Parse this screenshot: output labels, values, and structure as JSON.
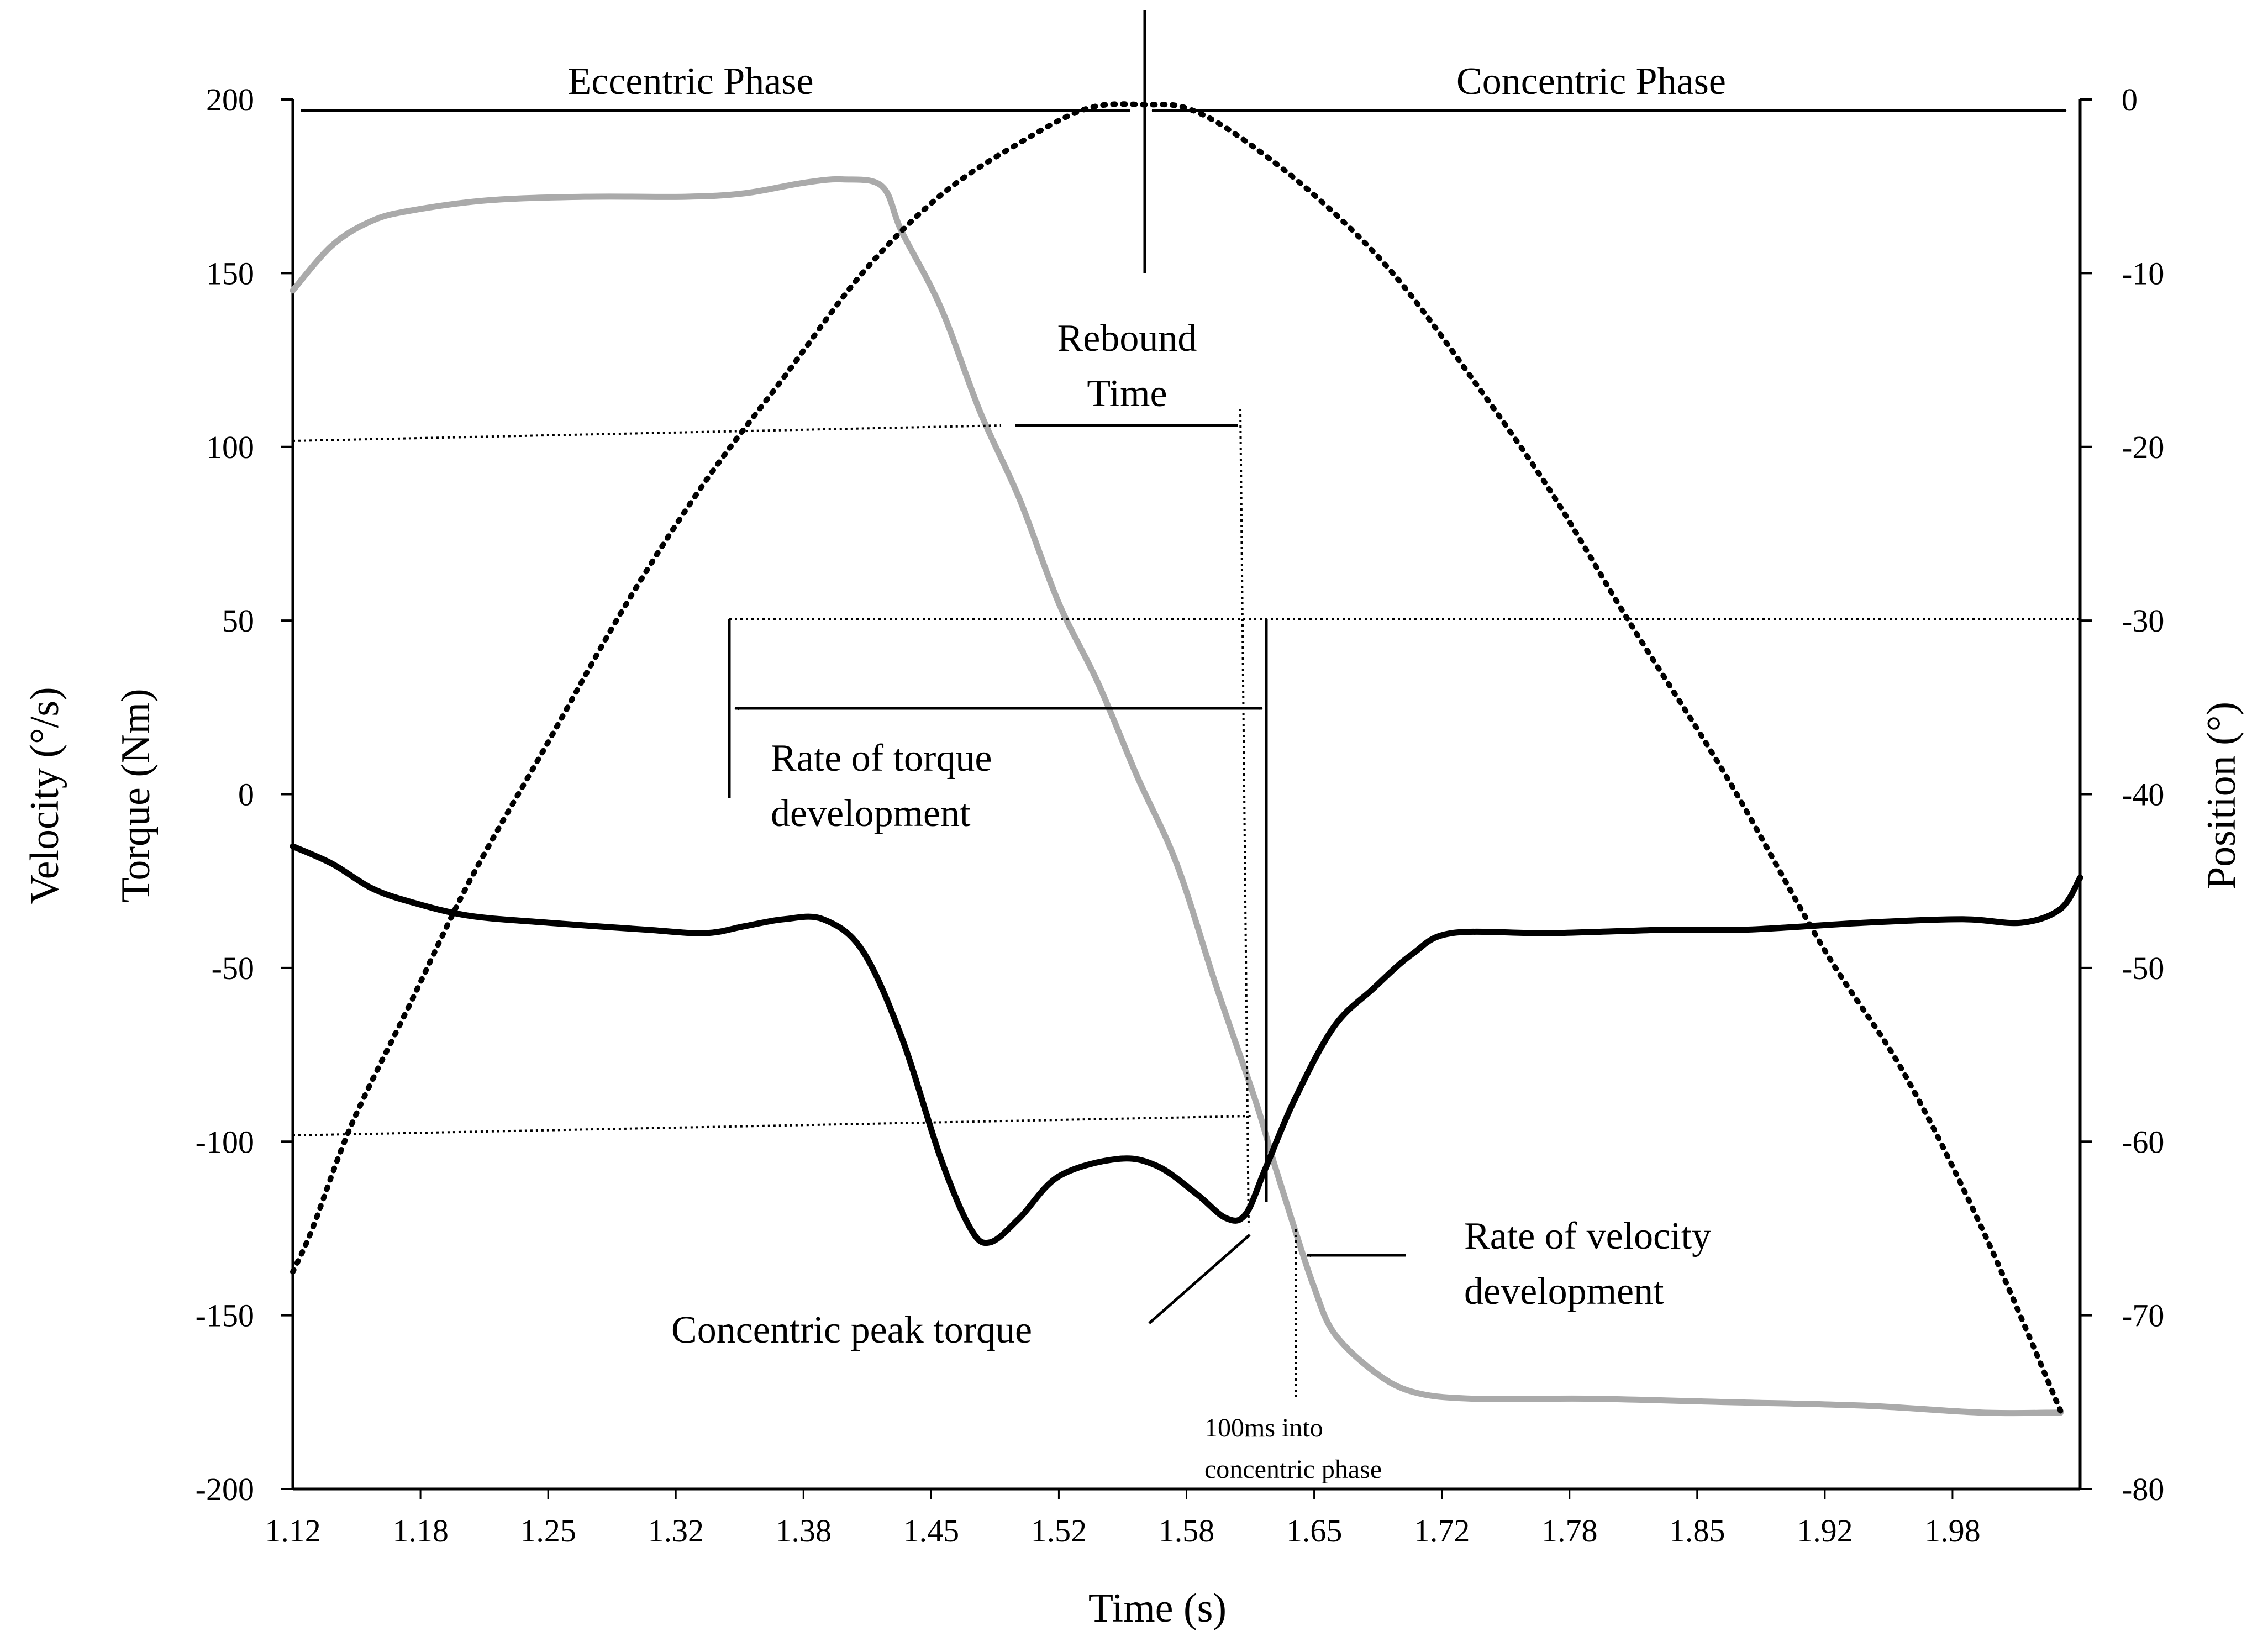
{
  "chart_data": {
    "type": "line",
    "xlabel": "Time (s)",
    "ylabel_left": [
      "Velocity (°/s)",
      "Torque (Nm)"
    ],
    "ylabel_right": "Position (°)",
    "xlim": [
      1.12,
      2.03
    ],
    "ylim_left": [
      -200,
      200
    ],
    "ylim_right": [
      -80,
      0
    ],
    "x_ticks": [
      "1.12",
      "1.18",
      "1.25",
      "1.32",
      "1.38",
      "1.45",
      "1.52",
      "1.58",
      "1.65",
      "1.72",
      "1.78",
      "1.85",
      "1.92",
      "1.98"
    ],
    "y_ticks_left": [
      "200",
      "150",
      "100",
      "50",
      "0",
      "-50",
      "-100",
      "-150",
      "-200"
    ],
    "y_ticks_right": [
      "0",
      "-10",
      "-20",
      "-30",
      "-40",
      "-50",
      "-60",
      "-70",
      "-80"
    ],
    "grid": false,
    "legend": "none",
    "series": [
      {
        "axis": "left",
        "color": "#aaaaaa",
        "style": "solid",
        "points": [
          [
            1.12,
            145
          ],
          [
            1.14,
            158
          ],
          [
            1.16,
            165
          ],
          [
            1.18,
            168
          ],
          [
            1.22,
            171
          ],
          [
            1.27,
            172
          ],
          [
            1.32,
            172
          ],
          [
            1.35,
            173
          ],
          [
            1.38,
            176
          ],
          [
            1.4,
            177
          ],
          [
            1.42,
            175
          ],
          [
            1.43,
            162
          ],
          [
            1.45,
            140
          ],
          [
            1.47,
            110
          ],
          [
            1.49,
            85
          ],
          [
            1.51,
            55
          ],
          [
            1.53,
            32
          ],
          [
            1.55,
            5
          ],
          [
            1.57,
            -20
          ],
          [
            1.59,
            -55
          ],
          [
            1.61,
            -88
          ],
          [
            1.62,
            -107
          ],
          [
            1.63,
            -125
          ],
          [
            1.64,
            -142
          ],
          [
            1.65,
            -155
          ],
          [
            1.67,
            -166
          ],
          [
            1.69,
            -172
          ],
          [
            1.72,
            -174
          ],
          [
            1.78,
            -174
          ],
          [
            1.85,
            -175
          ],
          [
            1.92,
            -176
          ],
          [
            1.98,
            -178
          ],
          [
            2.02,
            -178
          ]
        ]
      },
      {
        "axis": "left",
        "color": "#000000",
        "style": "solid",
        "points": [
          [
            1.12,
            -15
          ],
          [
            1.14,
            -20
          ],
          [
            1.16,
            -27
          ],
          [
            1.18,
            -31
          ],
          [
            1.21,
            -35
          ],
          [
            1.25,
            -37
          ],
          [
            1.3,
            -39
          ],
          [
            1.33,
            -40
          ],
          [
            1.35,
            -38
          ],
          [
            1.37,
            -36
          ],
          [
            1.39,
            -36
          ],
          [
            1.41,
            -45
          ],
          [
            1.43,
            -70
          ],
          [
            1.45,
            -105
          ],
          [
            1.465,
            -125
          ],
          [
            1.475,
            -129
          ],
          [
            1.49,
            -122
          ],
          [
            1.51,
            -110
          ],
          [
            1.54,
            -105
          ],
          [
            1.56,
            -107
          ],
          [
            1.58,
            -115
          ],
          [
            1.595,
            -122
          ],
          [
            1.605,
            -121
          ],
          [
            1.615,
            -108
          ],
          [
            1.63,
            -88
          ],
          [
            1.65,
            -67
          ],
          [
            1.67,
            -56
          ],
          [
            1.69,
            -46
          ],
          [
            1.71,
            -40
          ],
          [
            1.76,
            -40
          ],
          [
            1.82,
            -39
          ],
          [
            1.86,
            -39
          ],
          [
            1.92,
            -37
          ],
          [
            1.97,
            -36
          ],
          [
            2.0,
            -37
          ],
          [
            2.02,
            -33
          ],
          [
            2.03,
            -24
          ]
        ]
      },
      {
        "axis": "right",
        "color": "#000000",
        "style": "dotted",
        "points": [
          [
            1.12,
            -67.5
          ],
          [
            1.13,
            -65
          ],
          [
            1.15,
            -59
          ],
          [
            1.18,
            -52
          ],
          [
            1.21,
            -45
          ],
          [
            1.25,
            -37
          ],
          [
            1.29,
            -29
          ],
          [
            1.33,
            -22
          ],
          [
            1.37,
            -16
          ],
          [
            1.41,
            -10
          ],
          [
            1.45,
            -5.5
          ],
          [
            1.49,
            -2.5
          ],
          [
            1.525,
            -0.5
          ],
          [
            1.555,
            -0.3
          ],
          [
            1.575,
            -0.5
          ],
          [
            1.6,
            -2
          ],
          [
            1.64,
            -5.5
          ],
          [
            1.68,
            -10
          ],
          [
            1.72,
            -16
          ],
          [
            1.76,
            -22.5
          ],
          [
            1.8,
            -30
          ],
          [
            1.85,
            -39
          ],
          [
            1.9,
            -49
          ],
          [
            1.94,
            -56
          ],
          [
            1.98,
            -65
          ],
          [
            2.02,
            -75.5
          ]
        ]
      }
    ],
    "annotations": {
      "eccentric_phase": "Eccentric Phase",
      "concentric_phase": "Concentric Phase",
      "rebound_time_1": "Rebound",
      "rebound_time_2": "Time",
      "rtd_1": "Rate of torque",
      "rtd_2": "development",
      "rvd_1": "Rate of velocity",
      "rvd_2": "development",
      "peak_torque": "Concentric peak torque",
      "ms_1": "100ms into",
      "ms_2": "concentric phase"
    }
  }
}
